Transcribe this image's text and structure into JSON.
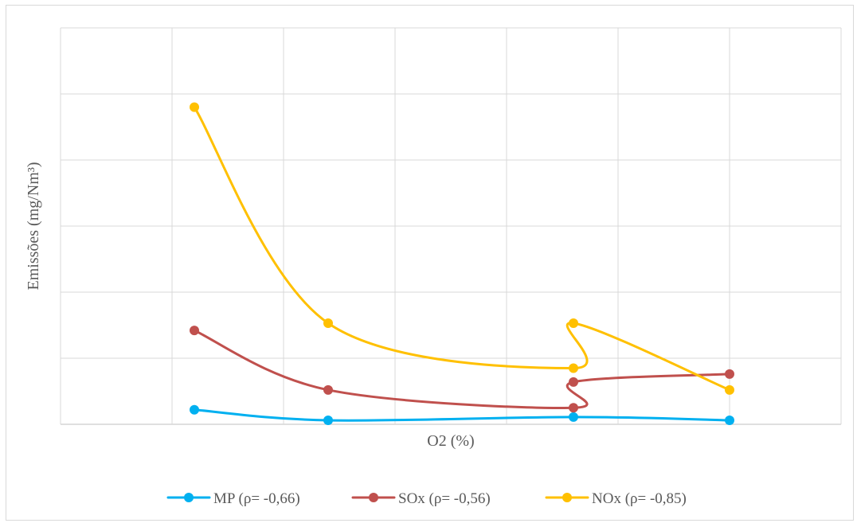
{
  "chart_data": {
    "type": "line",
    "smooth": true,
    "xlabel": "O2 (%)",
    "ylabel": "Emissões (mg/Nm³)",
    "x_tick_labels_shown": false,
    "y_tick_labels_shown": false,
    "grid": true,
    "legend_position": "bottom",
    "series": [
      {
        "name": "MP (ρ= -0,66)",
        "color": "#00b0f0",
        "points": [
          [
            1.2,
            0.22
          ],
          [
            2.4,
            0.06
          ],
          [
            4.6,
            0.11
          ],
          [
            6.0,
            0.06
          ]
        ]
      },
      {
        "name": "SOx (ρ= -0,56)",
        "color": "#c0504d",
        "points": [
          [
            1.2,
            1.42
          ],
          [
            2.4,
            0.52
          ],
          [
            4.6,
            0.25
          ],
          [
            4.6,
            0.64
          ],
          [
            6.0,
            0.76
          ]
        ]
      },
      {
        "name": "NOx (ρ= -0,85)",
        "color": "#ffc000",
        "points": [
          [
            1.2,
            4.8
          ],
          [
            2.4,
            1.53
          ],
          [
            4.6,
            0.85
          ],
          [
            4.6,
            1.53
          ],
          [
            6.0,
            0.52
          ]
        ]
      }
    ],
    "xlim": [
      0,
      7
    ],
    "ylim": [
      0,
      6
    ]
  }
}
